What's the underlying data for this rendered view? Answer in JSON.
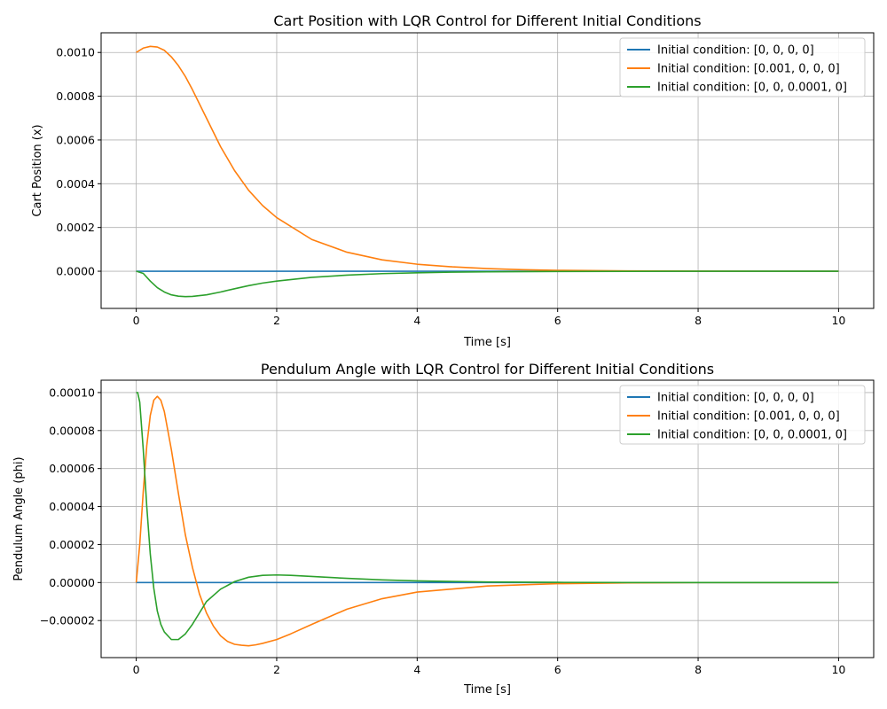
{
  "chart_data": [
    {
      "type": "line",
      "title": "Cart Position with LQR Control for Different Initial Conditions",
      "xlabel": "Time [s]",
      "ylabel": "Cart Position (x)",
      "xlim": [
        -0.5,
        10.5
      ],
      "ylim": [
        -0.00017,
        0.00109
      ],
      "xticks": [
        0,
        2,
        4,
        6,
        8,
        10
      ],
      "xtick_labels": [
        "0",
        "2",
        "4",
        "6",
        "8",
        "10"
      ],
      "yticks": [
        0.0,
        0.0002,
        0.0004,
        0.0006,
        0.0008,
        0.001
      ],
      "ytick_labels": [
        "0.0000",
        "0.0002",
        "0.0004",
        "0.0006",
        "0.0008",
        "0.0010"
      ],
      "grid": true,
      "legend_position": "top-right",
      "series": [
        {
          "name": "Initial condition: [0, 0, 0, 0]",
          "color": "#1f77b4",
          "x": [
            0,
            10
          ],
          "y": [
            0,
            0
          ]
        },
        {
          "name": "Initial condition: [0.001, 0, 0, 0]",
          "color": "#ff7f0e",
          "x": [
            0,
            0.1,
            0.2,
            0.3,
            0.4,
            0.5,
            0.6,
            0.7,
            0.8,
            1.0,
            1.2,
            1.4,
            1.6,
            1.8,
            2.0,
            2.5,
            3.0,
            3.5,
            4.0,
            4.5,
            5.0,
            5.5,
            6.0,
            7.0,
            8.0,
            9.0,
            10.0
          ],
          "y": [
            0.001,
            0.00102,
            0.001028,
            0.001025,
            0.00101,
            0.00098,
            0.00094,
            0.00089,
            0.00083,
            0.0007,
            0.00057,
            0.00046,
            0.00037,
            0.0003,
            0.000245,
            0.000145,
            8.7e-05,
            5.2e-05,
            3.2e-05,
            2e-05,
            1.2e-05,
            7e-06,
            4e-06,
            1.5e-06,
            5e-07,
            2e-07,
            1e-07
          ]
        },
        {
          "name": "Initial condition: [0, 0, 0.0001, 0]",
          "color": "#2ca02c",
          "x": [
            0,
            0.1,
            0.2,
            0.3,
            0.4,
            0.5,
            0.6,
            0.7,
            0.8,
            1.0,
            1.2,
            1.4,
            1.6,
            1.8,
            2.0,
            2.5,
            3.0,
            3.5,
            4.0,
            4.5,
            5.0,
            6.0,
            7.0,
            8.0,
            9.0,
            10.0
          ],
          "y": [
            0,
            -1e-05,
            -4.5e-05,
            -7.5e-05,
            -9.5e-05,
            -0.000108,
            -0.000114,
            -0.000116,
            -0.000115,
            -0.000108,
            -9.5e-05,
            -8e-05,
            -6.6e-05,
            -5.4e-05,
            -4.5e-05,
            -2.8e-05,
            -1.8e-05,
            -1.1e-05,
            -7e-06,
            -4e-06,
            -2.5e-06,
            -1e-06,
            -4e-07,
            -1e-07,
            0,
            0
          ]
        }
      ]
    },
    {
      "type": "line",
      "title": "Pendulum Angle with LQR Control for Different Initial Conditions",
      "xlabel": "Time [s]",
      "ylabel": "Pendulum Angle (phi)",
      "xlim": [
        -0.5,
        10.5
      ],
      "ylim": [
        -3.95e-05,
        0.0001065
      ],
      "xticks": [
        0,
        2,
        4,
        6,
        8,
        10
      ],
      "xtick_labels": [
        "0",
        "2",
        "4",
        "6",
        "8",
        "10"
      ],
      "yticks": [
        -2e-05,
        0.0,
        2e-05,
        4e-05,
        6e-05,
        8e-05,
        0.0001
      ],
      "ytick_labels": [
        "−0.00002",
        "0.00000",
        "0.00002",
        "0.00004",
        "0.00006",
        "0.00008",
        "0.00010"
      ],
      "grid": true,
      "legend_position": "top-right",
      "series": [
        {
          "name": "Initial condition: [0, 0, 0, 0]",
          "color": "#1f77b4",
          "x": [
            0,
            10
          ],
          "y": [
            0,
            0
          ]
        },
        {
          "name": "Initial condition: [0.001, 0, 0, 0]",
          "color": "#ff7f0e",
          "x": [
            0,
            0.05,
            0.1,
            0.15,
            0.2,
            0.25,
            0.3,
            0.35,
            0.4,
            0.5,
            0.6,
            0.7,
            0.8,
            0.9,
            1.0,
            1.1,
            1.2,
            1.3,
            1.4,
            1.5,
            1.6,
            1.7,
            1.8,
            2.0,
            2.2,
            2.5,
            3.0,
            3.5,
            4.0,
            5.0,
            6.0,
            7.0,
            8.0,
            10.0
          ],
          "y": [
            0,
            2e-05,
            4.8e-05,
            7.2e-05,
            8.8e-05,
            9.6e-05,
            9.8e-05,
            9.6e-05,
            9e-05,
            7e-05,
            4.7e-05,
            2.5e-05,
            8e-06,
            -6e-06,
            -1.6e-05,
            -2.3e-05,
            -2.8e-05,
            -3.1e-05,
            -3.25e-05,
            -3.3e-05,
            -3.33e-05,
            -3.28e-05,
            -3.2e-05,
            -3e-05,
            -2.7e-05,
            -2.2e-05,
            -1.4e-05,
            -8.5e-06,
            -5e-06,
            -1.8e-06,
            -6e-07,
            -2e-07,
            0,
            0
          ]
        },
        {
          "name": "Initial condition: [0, 0, 0.0001, 0]",
          "color": "#2ca02c",
          "x": [
            0,
            0.02,
            0.05,
            0.1,
            0.15,
            0.2,
            0.25,
            0.3,
            0.35,
            0.4,
            0.5,
            0.6,
            0.7,
            0.8,
            0.9,
            1.0,
            1.2,
            1.4,
            1.6,
            1.8,
            2.0,
            2.2,
            2.5,
            3.0,
            3.5,
            4.0,
            5.0,
            6.0,
            7.0,
            8.0,
            10.0
          ],
          "y": [
            0.0001,
            0.0001,
            9.5e-05,
            7e-05,
            4e-05,
            1.5e-05,
            -3e-06,
            -1.5e-05,
            -2.2e-05,
            -2.6e-05,
            -3e-05,
            -3e-05,
            -2.7e-05,
            -2.2e-05,
            -1.6e-05,
            -1e-05,
            -3.5e-06,
            5e-07,
            2.8e-06,
            3.8e-06,
            4e-06,
            3.8e-06,
            3.2e-06,
            2.2e-06,
            1.4e-06,
            9e-07,
            3e-07,
            1e-07,
            0,
            0,
            0
          ]
        }
      ]
    }
  ]
}
